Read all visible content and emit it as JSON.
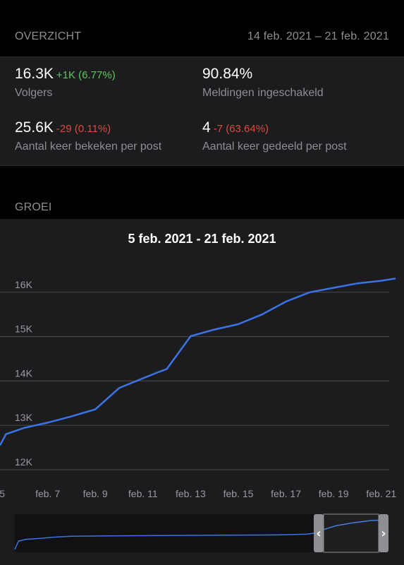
{
  "overview": {
    "title": "OVERZICHT",
    "date_range": "14 feb. 2021 – 21 feb. 2021",
    "stats": [
      {
        "value": "16.3K",
        "delta": "+1K (6.77%)",
        "trend": "up",
        "label": "Volgers"
      },
      {
        "value": "90.84%",
        "delta": "",
        "trend": "none",
        "label": "Meldingen ingeschakeld"
      },
      {
        "value": "25.6K",
        "delta": "-29 (0.11%)",
        "trend": "down",
        "label": "Aantal keer bekeken per post"
      },
      {
        "value": "4",
        "delta": "-7 (63.64%)",
        "trend": "down",
        "label": "Aantal keer gedeeld per post"
      }
    ]
  },
  "growth": {
    "title": "GROEI",
    "chart_title": "5 feb. 2021 - 21 feb. 2021"
  },
  "colors": {
    "line": "#3b74e6",
    "positive": "#5ec762",
    "negative": "#e0483e"
  },
  "chart_data": {
    "type": "line",
    "title": "5 feb. 2021 - 21 feb. 2021",
    "xlabel": "",
    "ylabel": "",
    "grid": true,
    "x_ticks": [
      "5",
      "feb. 7",
      "feb. 9",
      "feb. 11",
      "feb. 13",
      "feb. 15",
      "feb. 17",
      "feb. 19",
      "feb. 21"
    ],
    "y_ticks": [
      "12K",
      "13K",
      "14K",
      "15K",
      "16K"
    ],
    "ylim": [
      11700,
      16500
    ],
    "series": [
      {
        "x": [
          "feb. 5",
          "feb. 5.25",
          "feb. 6",
          "feb. 7",
          "feb. 8",
          "feb. 9",
          "feb. 10",
          "feb. 11",
          "feb. 11.6",
          "feb. 12",
          "feb. 13",
          "feb. 14",
          "feb. 15",
          "feb. 16",
          "feb. 17",
          "feb. 18",
          "feb. 19",
          "feb. 20",
          "feb. 21",
          "feb. 21.6"
        ],
        "values": [
          12550,
          12800,
          12940,
          13060,
          13200,
          13360,
          13840,
          14060,
          14190,
          14270,
          15010,
          15160,
          15280,
          15500,
          15790,
          16000,
          16100,
          16200,
          16260,
          16310
        ]
      }
    ],
    "navigator": {
      "range_start_fraction": 0.8,
      "range_end_fraction": 1.0
    }
  }
}
